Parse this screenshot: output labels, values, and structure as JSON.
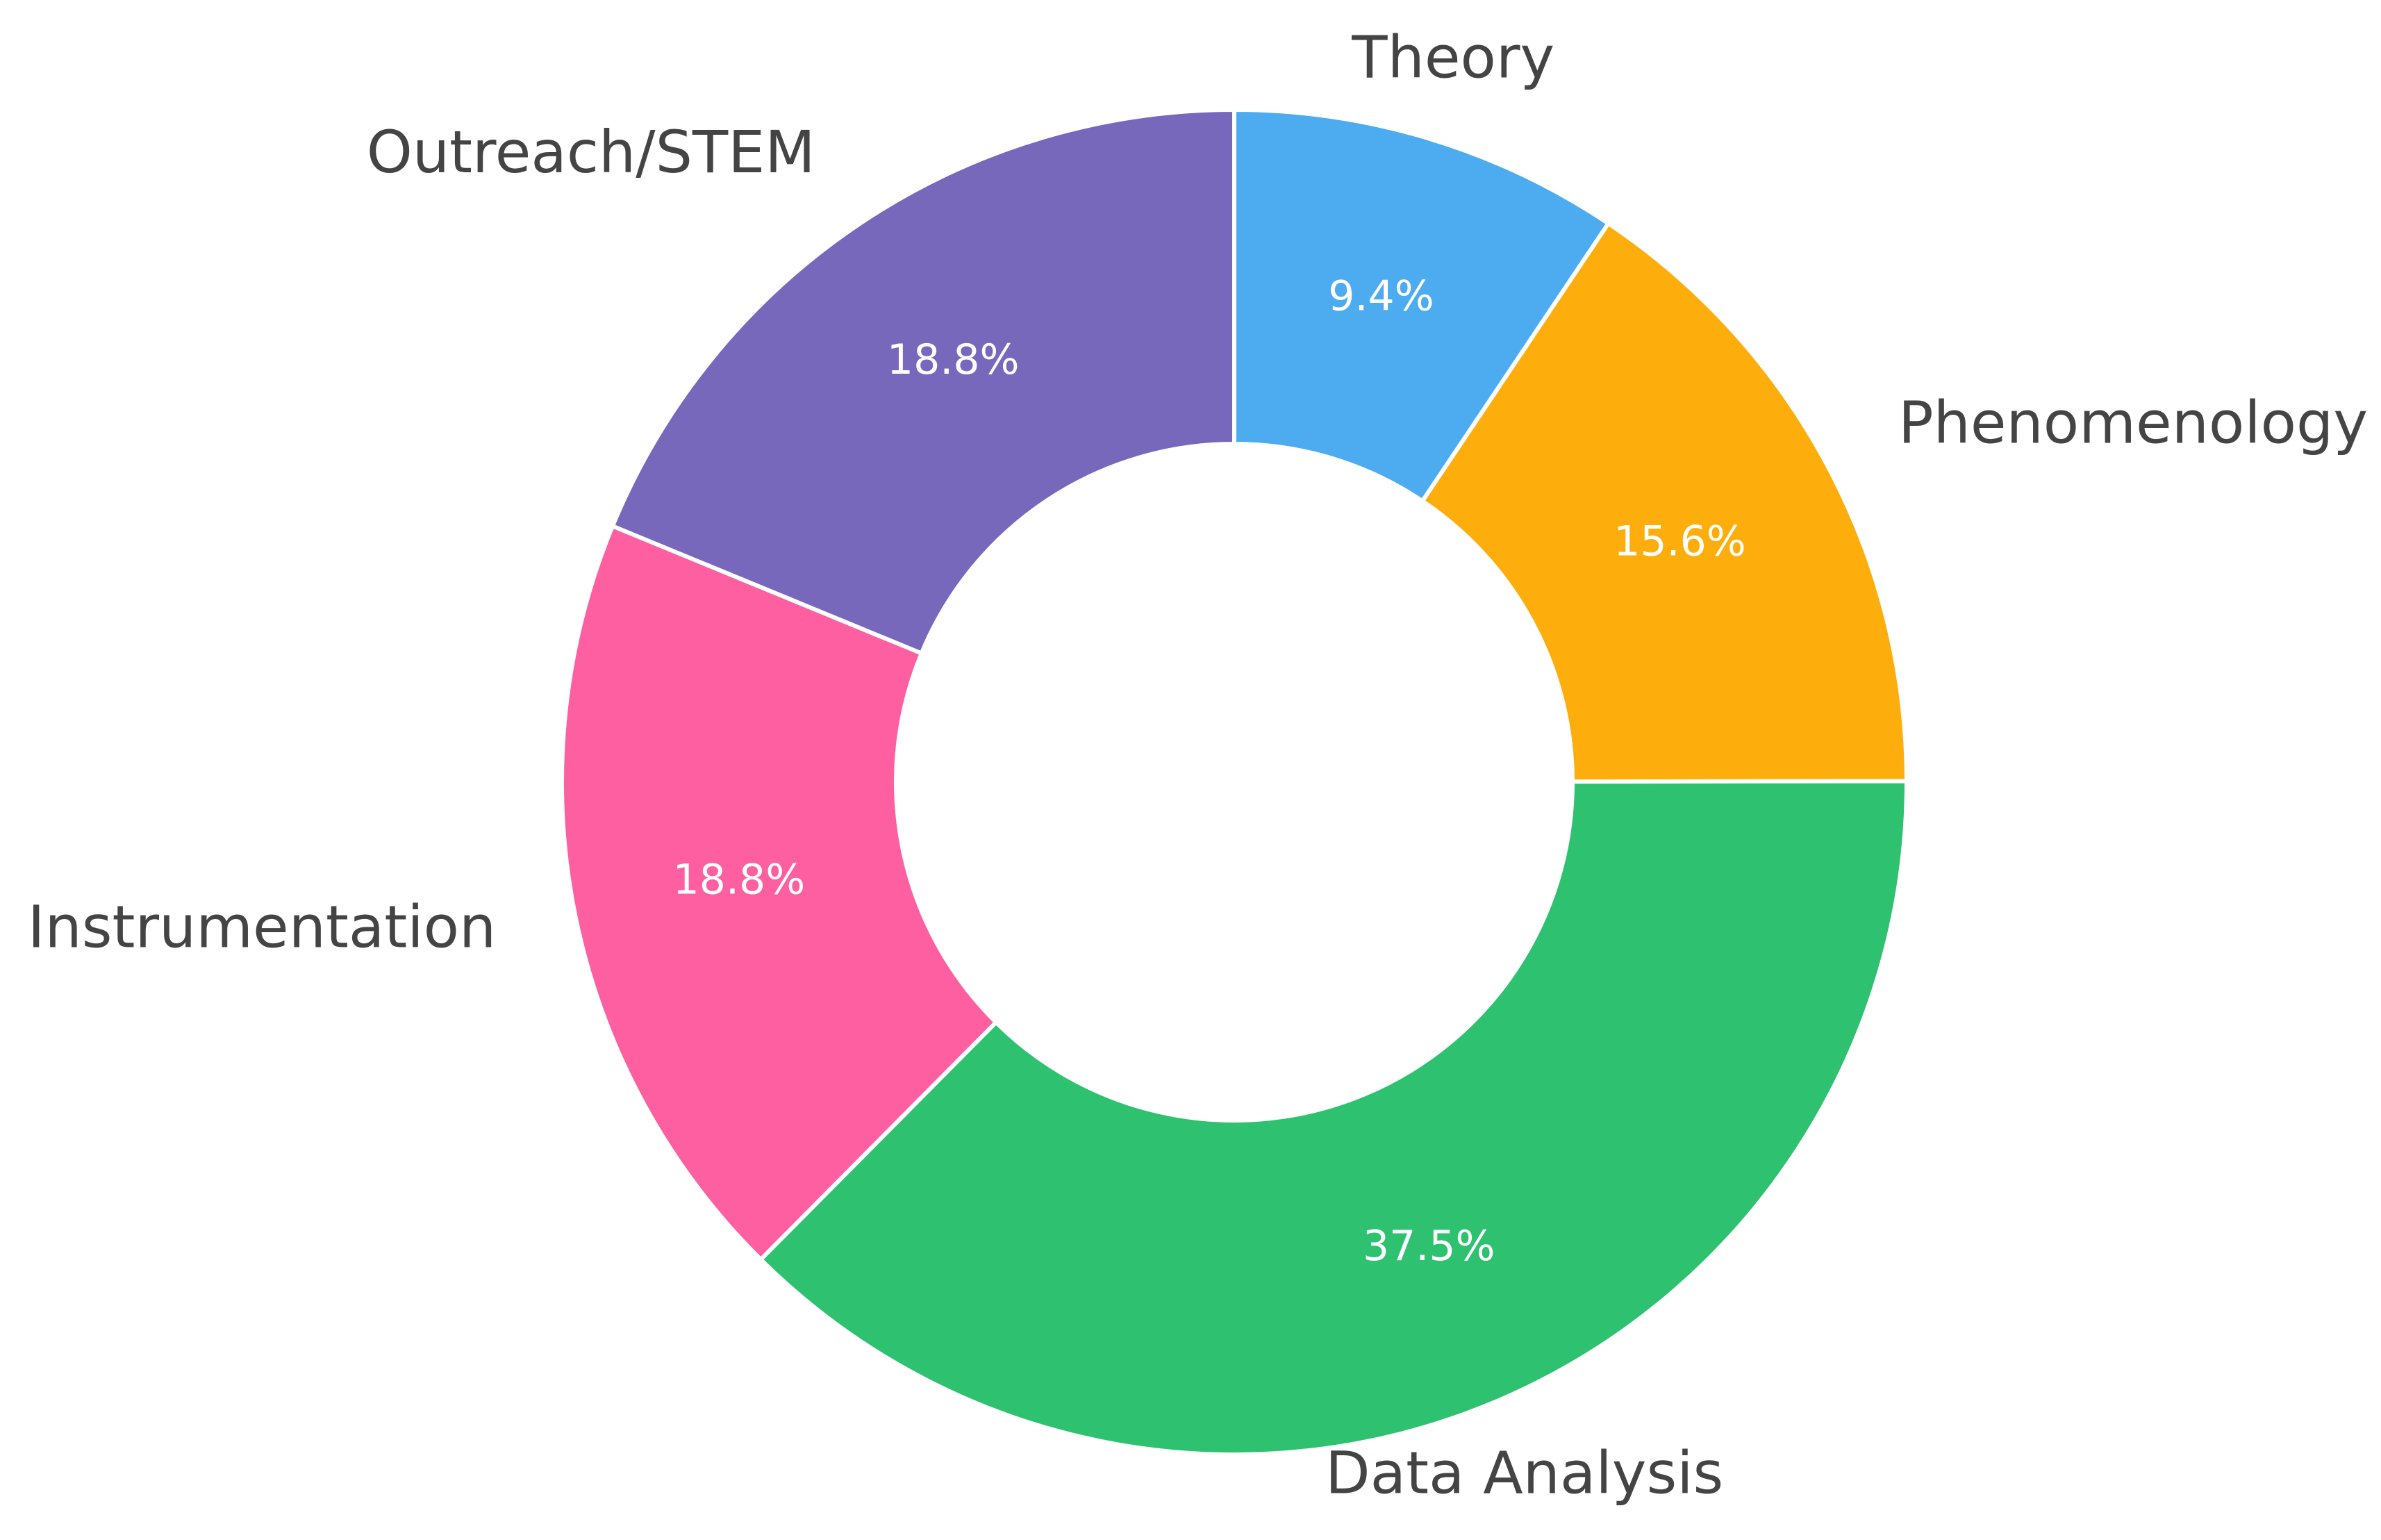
{
  "chart_data": {
    "type": "donut",
    "categories": [
      "Theory",
      "Phenomenology",
      "Data Analysis",
      "Instrumentation",
      "Outreach/STEM"
    ],
    "values": [
      9.4,
      15.6,
      37.5,
      18.8,
      18.8
    ],
    "value_labels": [
      "9.4%",
      "15.6%",
      "37.5%",
      "18.8%",
      "18.8%"
    ],
    "colors": [
      "#4dabf0",
      "#fdae0c",
      "#2ec270",
      "#fd5fa0",
      "#7868bc"
    ]
  }
}
